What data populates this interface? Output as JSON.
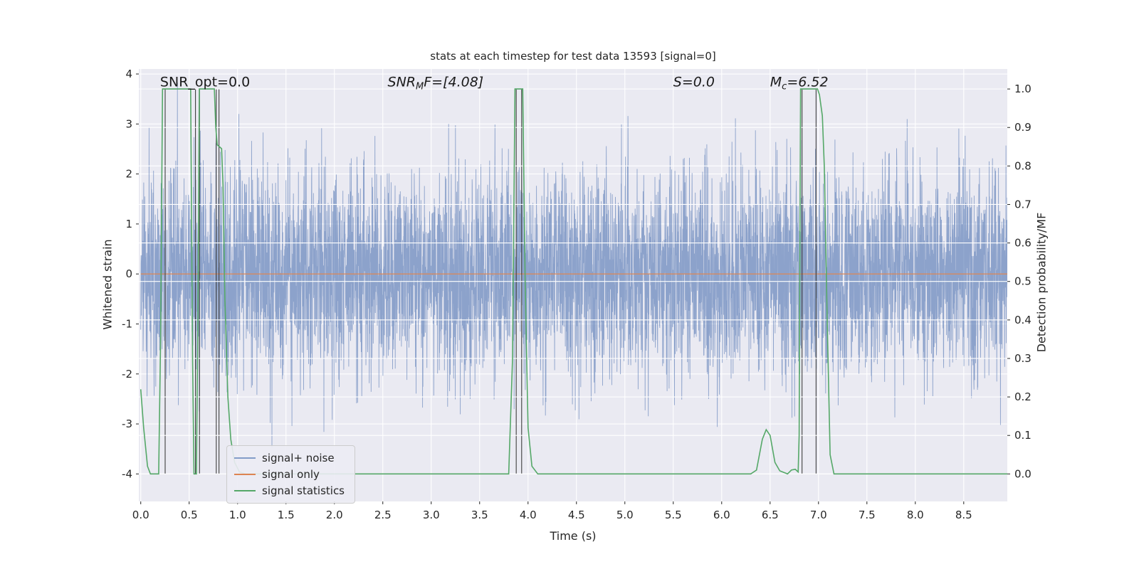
{
  "chart_data": {
    "type": "line",
    "title": "stats at each timestep for test data 13593 [signal=0]",
    "xlabel": "Time (s)",
    "ylabel_left": "Whitened strain",
    "ylabel_right": "Detection probability/MF",
    "xlim": [
      -0.02,
      8.95
    ],
    "ylim_left": [
      -4,
      4
    ],
    "ylim_right": [
      0.0,
      1.0
    ],
    "xticks": [
      0.0,
      0.5,
      1.0,
      1.5,
      2.0,
      2.5,
      3.0,
      3.5,
      4.0,
      4.5,
      5.0,
      5.5,
      6.0,
      6.5,
      7.0,
      7.5,
      8.0,
      8.5
    ],
    "yticks_left": [
      -4,
      -3,
      -2,
      -1,
      0,
      1,
      2,
      3,
      4
    ],
    "yticks_right": [
      0.0,
      0.1,
      0.2,
      0.3,
      0.4,
      0.5,
      0.6,
      0.7,
      0.8,
      0.9,
      1.0
    ],
    "grid": true,
    "colors": {
      "figure_bg": "#ffffff",
      "axes_bg": "#eaeaf2",
      "grid": "#ffffff",
      "text": "#262626",
      "noise": "#4c72b0",
      "noise_alpha": 0.6,
      "signal": "#dd8452",
      "stats": "#55a868",
      "vline": "#3f3f3f"
    },
    "series": [
      {
        "name": "signal+ noise",
        "type": "gaussian_noise",
        "seed": 13593,
        "n": 5200,
        "std": 1.05,
        "x_range": [
          0.0,
          8.95
        ]
      },
      {
        "name": "signal only",
        "type": "constant",
        "value": 0.0,
        "x_range": [
          0.0,
          8.95
        ]
      },
      {
        "name": "signal statistics",
        "type": "keypoints",
        "axis": "right",
        "points": [
          [
            0.0,
            0.22
          ],
          [
            0.03,
            0.12
          ],
          [
            0.07,
            0.02
          ],
          [
            0.1,
            0.0
          ],
          [
            0.185,
            0.0
          ],
          [
            0.205,
            0.35
          ],
          [
            0.225,
            1.0
          ],
          [
            0.515,
            1.0
          ],
          [
            0.535,
            0.3
          ],
          [
            0.55,
            0.0
          ],
          [
            0.575,
            0.0
          ],
          [
            0.59,
            0.4
          ],
          [
            0.605,
            1.0
          ],
          [
            0.76,
            1.0
          ],
          [
            0.775,
            0.9
          ],
          [
            0.79,
            0.855
          ],
          [
            0.835,
            0.845
          ],
          [
            0.85,
            0.75
          ],
          [
            0.87,
            0.45
          ],
          [
            0.9,
            0.2
          ],
          [
            0.93,
            0.09
          ],
          [
            0.97,
            0.03
          ],
          [
            1.02,
            0.005
          ],
          [
            1.08,
            0.0
          ],
          [
            3.8,
            0.0
          ],
          [
            3.84,
            0.3
          ],
          [
            3.865,
            1.0
          ],
          [
            3.945,
            1.0
          ],
          [
            3.97,
            0.5
          ],
          [
            4.0,
            0.12
          ],
          [
            4.04,
            0.02
          ],
          [
            4.1,
            0.0
          ],
          [
            6.3,
            0.0
          ],
          [
            6.36,
            0.01
          ],
          [
            6.42,
            0.09
          ],
          [
            6.46,
            0.115
          ],
          [
            6.5,
            0.1
          ],
          [
            6.55,
            0.03
          ],
          [
            6.6,
            0.008
          ],
          [
            6.68,
            0.0
          ],
          [
            6.72,
            0.01
          ],
          [
            6.76,
            0.012
          ],
          [
            6.79,
            0.005
          ],
          [
            6.8,
            0.1
          ],
          [
            6.815,
            1.0
          ],
          [
            6.99,
            1.0
          ],
          [
            7.01,
            0.985
          ],
          [
            7.04,
            0.93
          ],
          [
            7.06,
            0.8
          ],
          [
            7.09,
            0.4
          ],
          [
            7.12,
            0.05
          ],
          [
            7.16,
            0.0
          ],
          [
            8.95,
            0.0
          ]
        ]
      }
    ],
    "vlines": {
      "x": [
        0.252,
        0.565,
        0.607,
        0.78,
        0.808,
        3.878,
        3.934,
        6.83,
        6.975
      ],
      "ymin": -4.0,
      "ymax": 3.7
    },
    "annotations": [
      {
        "x": 0.2,
        "y": 3.75,
        "italic": false,
        "pre": "SNR_opt=0.0",
        "sub": "",
        "post": ""
      },
      {
        "x": 2.55,
        "y": 3.75,
        "italic": true,
        "pre": "SNR",
        "sub": "M",
        "post": "F=[4.08]"
      },
      {
        "x": 5.5,
        "y": 3.75,
        "italic": true,
        "pre": "S",
        "sub": "",
        "post": "=0.0"
      },
      {
        "x": 6.5,
        "y": 3.75,
        "italic": true,
        "pre": "M",
        "sub": "c",
        "post": "=6.52"
      }
    ],
    "legend": {
      "position": "lower-left",
      "items": [
        "signal+ noise",
        "signal only",
        "signal statistics"
      ]
    }
  }
}
